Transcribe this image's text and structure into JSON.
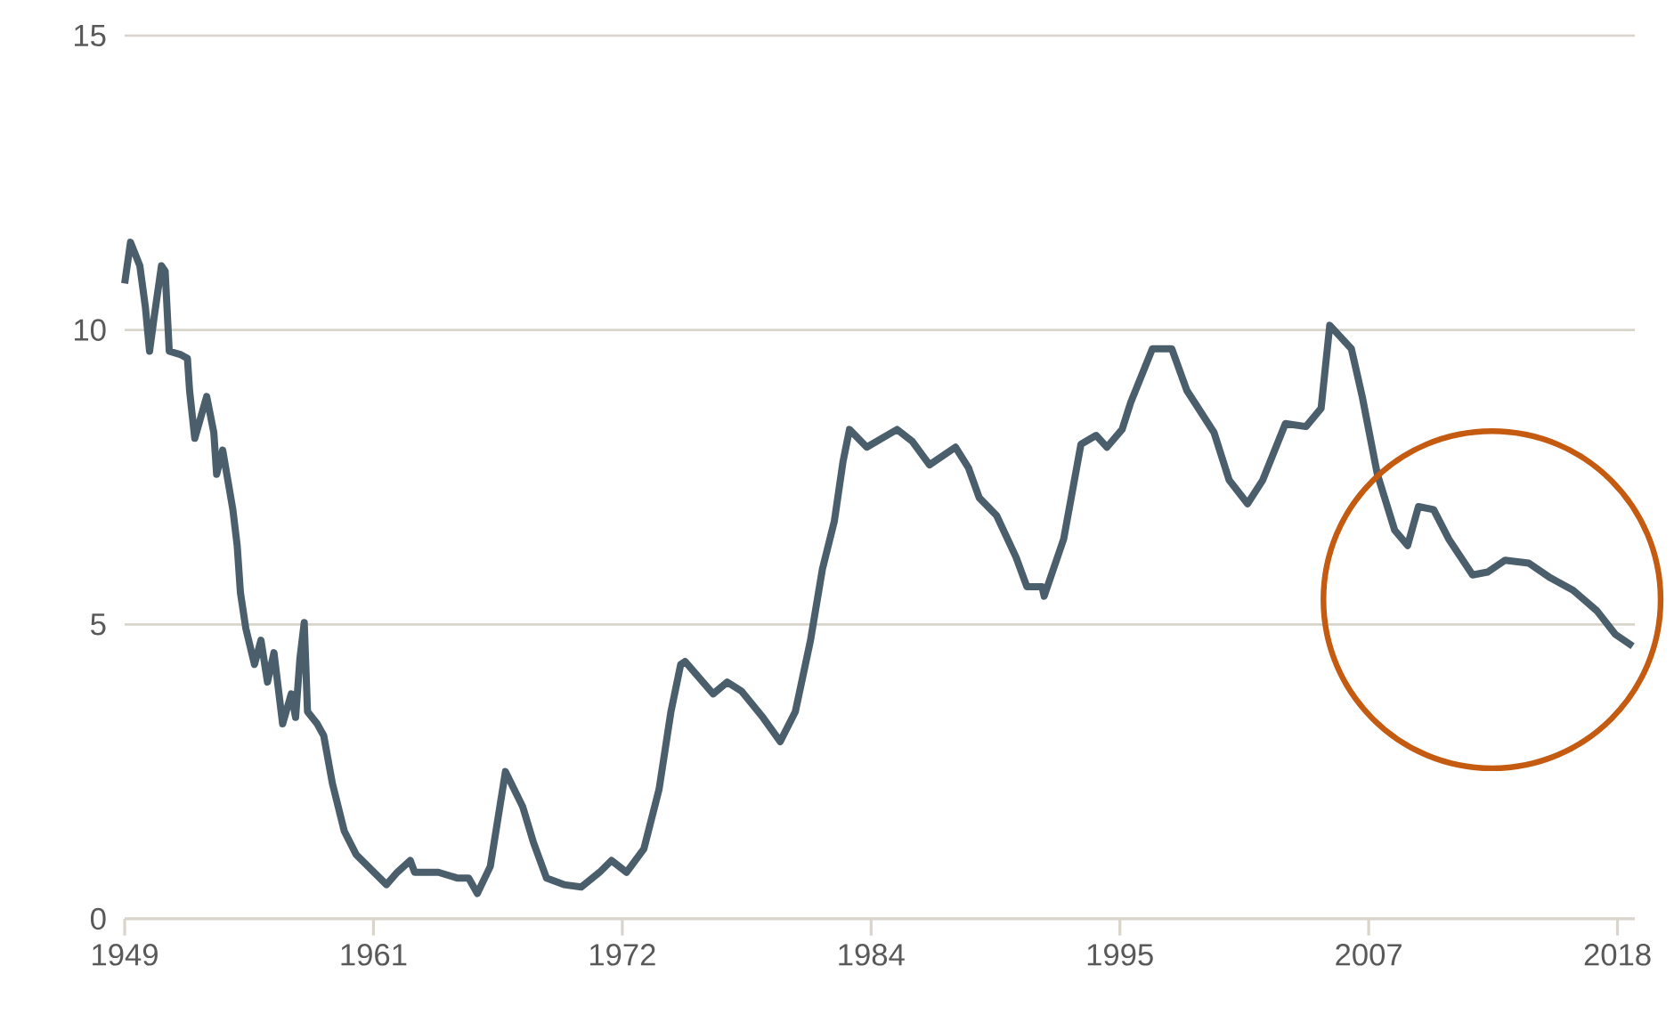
{
  "chart_data": {
    "type": "line",
    "x": [
      1949.0,
      1949.27,
      1949.7,
      1949.96,
      1950.15,
      1950.37,
      1950.7,
      1950.87,
      1951.06,
      1951.6,
      1951.9,
      1952.0,
      1952.24,
      1952.79,
      1953.12,
      1953.25,
      1953.53,
      1954.0,
      1954.2,
      1954.35,
      1954.6,
      1955.0,
      1955.3,
      1955.6,
      1955.9,
      1956.3,
      1956.7,
      1956.9,
      1957.1,
      1957.3,
      1957.45,
      1957.9,
      1958.2,
      1958.6,
      1959.15,
      1959.7,
      1960.25,
      1961.1,
      1961.6,
      1962.2,
      1962.4,
      1963.5,
      1964.4,
      1964.9,
      1965.3,
      1965.9,
      1966.6,
      1967.4,
      1967.9,
      1968.5,
      1969.3,
      1970.1,
      1970.95,
      1971.5,
      1972.2,
      1973.0,
      1973.7,
      1974.25,
      1974.7,
      1974.9,
      1976.2,
      1976.85,
      1977.5,
      1978.5,
      1979.3,
      1980.0,
      1980.7,
      1981.25,
      1981.8,
      1982.2,
      1982.5,
      1983.3,
      1984.7,
      1985.4,
      1986.2,
      1987.4,
      1988.0,
      1988.5,
      1989.3,
      1990.2,
      1990.7,
      1991.4,
      1991.5,
      1992.4,
      1993.2,
      1993.9,
      1994.4,
      1995.1,
      1995.5,
      1996.5,
      1997.4,
      1998.1,
      1999.35,
      2000.05,
      2000.9,
      2001.6,
      2002.65,
      2003.6,
      2004.3,
      2004.7,
      2005.7,
      2006.2,
      2006.9,
      2007.7,
      2008.3,
      2008.8,
      2009.5,
      2010.2,
      2011.3,
      2012.0,
      2012.8,
      2013.9,
      2014.9,
      2015.95,
      2017.05,
      2017.9,
      2018.7
    ],
    "series": [
      {
        "color": "#4a5f6b",
        "values": [
          10.79,
          11.49,
          11.09,
          10.38,
          9.64,
          10.24,
          11.09,
          11.0,
          9.64,
          9.58,
          9.52,
          8.97,
          8.16,
          8.87,
          8.26,
          7.55,
          7.96,
          6.95,
          6.34,
          5.54,
          4.93,
          4.32,
          4.73,
          4.02,
          4.52,
          3.31,
          3.82,
          3.42,
          4.42,
          5.03,
          3.52,
          3.31,
          3.11,
          2.3,
          1.49,
          1.09,
          0.89,
          0.58,
          0.79,
          0.99,
          0.79,
          0.79,
          0.69,
          0.69,
          0.43,
          0.89,
          2.5,
          1.9,
          1.29,
          0.69,
          0.58,
          0.54,
          0.79,
          0.99,
          0.79,
          1.19,
          2.2,
          3.52,
          4.32,
          4.37,
          3.82,
          4.02,
          3.87,
          3.42,
          3.01,
          3.52,
          4.73,
          5.94,
          6.75,
          7.76,
          8.31,
          8.01,
          8.31,
          8.11,
          7.71,
          8.01,
          7.66,
          7.15,
          6.85,
          6.14,
          5.64,
          5.64,
          5.48,
          6.45,
          8.06,
          8.21,
          8.01,
          8.31,
          8.77,
          9.68,
          9.68,
          8.97,
          8.26,
          7.45,
          7.05,
          7.45,
          8.41,
          8.36,
          8.67,
          10.08,
          9.68,
          8.87,
          7.55,
          6.6,
          6.34,
          7.0,
          6.95,
          6.45,
          5.84,
          5.89,
          6.09,
          6.04,
          5.79,
          5.58,
          5.23,
          4.83,
          4.63
        ]
      }
    ],
    "xlim": [
      1949,
      2018.8
    ],
    "ylim": [
      0,
      15
    ],
    "xticks": [
      {
        "value": 1949,
        "label": "1949"
      },
      {
        "value": 1960.5,
        "label": "1961"
      },
      {
        "value": 1972,
        "label": "1972"
      },
      {
        "value": 1983.5,
        "label": "1984"
      },
      {
        "value": 1995,
        "label": "1995"
      },
      {
        "value": 2006.5,
        "label": "2007"
      },
      {
        "value": 2018,
        "label": "2018"
      }
    ],
    "yticks": [
      0,
      5,
      10,
      15
    ],
    "grid": "y"
  }
}
